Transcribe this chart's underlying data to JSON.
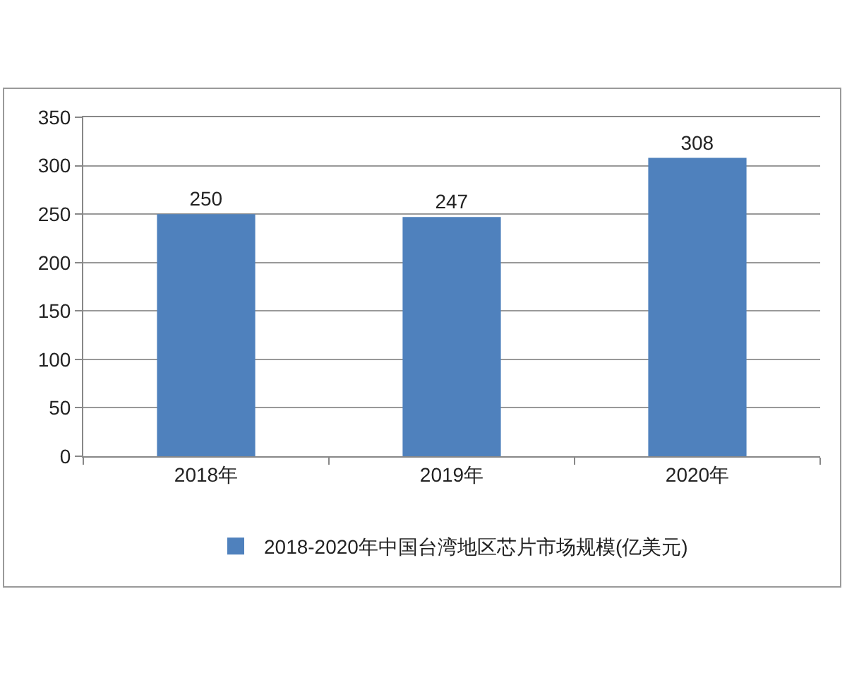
{
  "chart_data": {
    "type": "bar",
    "categories": [
      "2018年",
      "2019年",
      "2020年"
    ],
    "series": [
      {
        "name": "2018-2020年中国台湾地区芯片市场规模(亿美元)",
        "color": "#4f81bd",
        "values": [
          250,
          247,
          308
        ]
      }
    ],
    "ylim": [
      0,
      350
    ],
    "yticks": [
      0,
      50,
      100,
      150,
      200,
      250,
      300,
      350
    ],
    "grid": "y",
    "data_labels": true,
    "legend": "bottom"
  }
}
